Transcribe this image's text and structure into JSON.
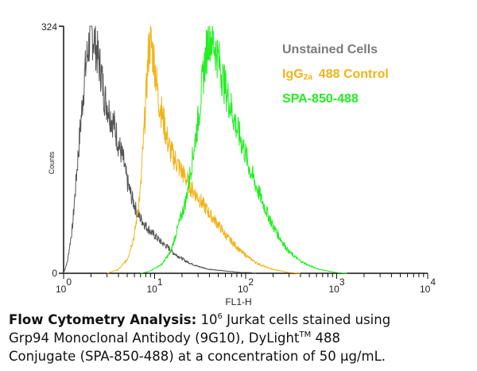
{
  "chart_data": {
    "type": "line",
    "title": "",
    "xlabel": "FL1-H",
    "ylabel": "Counts",
    "x_scale": "log",
    "xlim": [
      1,
      10000
    ],
    "ylim": [
      0,
      324
    ],
    "y_ticks": [
      "0",
      "324"
    ],
    "x_ticks": [
      {
        "base": "10",
        "exp": "0"
      },
      {
        "base": "10",
        "exp": "1"
      },
      {
        "base": "10",
        "exp": "2"
      },
      {
        "base": "10",
        "exp": "3"
      },
      {
        "base": "10",
        "exp": "4"
      }
    ],
    "legend_position": "top-right",
    "series": [
      {
        "name": "Unstained Cells",
        "color": "#555555",
        "x": [
          1.0,
          1.1,
          1.25,
          1.4,
          1.55,
          1.7,
          1.85,
          2.0,
          2.2,
          2.4,
          2.6,
          2.8,
          3.0,
          3.3,
          3.6,
          4.0,
          4.5,
          5.0,
          5.6,
          6.3,
          7.0,
          8.0,
          9.0,
          10.5,
          12,
          14,
          16,
          19,
          22,
          26,
          30,
          35,
          40,
          50,
          60,
          75,
          90,
          110,
          130
        ],
        "y": [
          0,
          15,
          60,
          135,
          200,
          258,
          292,
          318,
          305,
          282,
          262,
          232,
          222,
          205,
          195,
          170,
          150,
          120,
          100,
          82,
          72,
          62,
          55,
          47,
          40,
          34,
          27,
          21,
          16,
          12,
          9,
          7,
          5,
          4,
          3,
          2,
          1,
          1,
          0
        ]
      },
      {
        "label": "IgG",
        "name": "IgG2a 488 Control",
        "color": "#f0b419",
        "x": [
          3.0,
          4.0,
          5.0,
          6.0,
          7.0,
          8.0,
          8.5,
          9.0,
          10.0,
          11.0,
          12.0,
          13.0,
          14.0,
          15.0,
          17.0,
          19.0,
          22.0,
          25.0,
          30.0,
          35.0,
          40.0,
          50.0,
          60.0,
          75.0,
          90.0,
          110.0,
          130.0,
          160.0,
          200.0,
          250.0,
          300.0,
          400.0
        ],
        "y": [
          0,
          5,
          18,
          50,
          110,
          225,
          285,
          305,
          275,
          228,
          210,
          190,
          172,
          160,
          148,
          137,
          125,
          112,
          100,
          88,
          78,
          64,
          50,
          38,
          28,
          20,
          14,
          9,
          5,
          3,
          1,
          0
        ]
      },
      {
        "name": "SPA-850-488",
        "color": "#22ee22",
        "x": [
          7.0,
          9.0,
          12.0,
          15.0,
          18.0,
          22.0,
          26.0,
          30.0,
          35.0,
          40.0,
          45.0,
          50.0,
          55.0,
          60.0,
          70.0,
          80.0,
          95.0,
          110.0,
          130.0,
          160.0,
          200.0,
          250.0,
          300.0,
          400.0,
          500.0,
          650.0,
          800.0,
          1000.0,
          1300.0
        ],
        "y": [
          0,
          3,
          12,
          28,
          60,
          95,
          150,
          200,
          270,
          315,
          300,
          282,
          260,
          242,
          215,
          190,
          165,
          138,
          115,
          88,
          62,
          42,
          28,
          16,
          10,
          5,
          3,
          1,
          0
        ]
      }
    ]
  },
  "legend": {
    "unstained": "Unstained Cells",
    "igg_main": "IgG",
    "igg_sub": "2a",
    "igg_rest": "488 Control",
    "spa": "SPA-850-488"
  },
  "caption": {
    "bold": "Flow Cytometry Analysis:",
    "t1": "10",
    "t1_sup": "6",
    "t2": "Jurkat cells stained using",
    "line2a": "Grp94 Monoclonal Antibody (9G10), DyLight",
    "line2_sup": "TM",
    "line2b": "488",
    "line3": "Conjugate (SPA-850-488) at a concentration of 50 µg/mL."
  }
}
